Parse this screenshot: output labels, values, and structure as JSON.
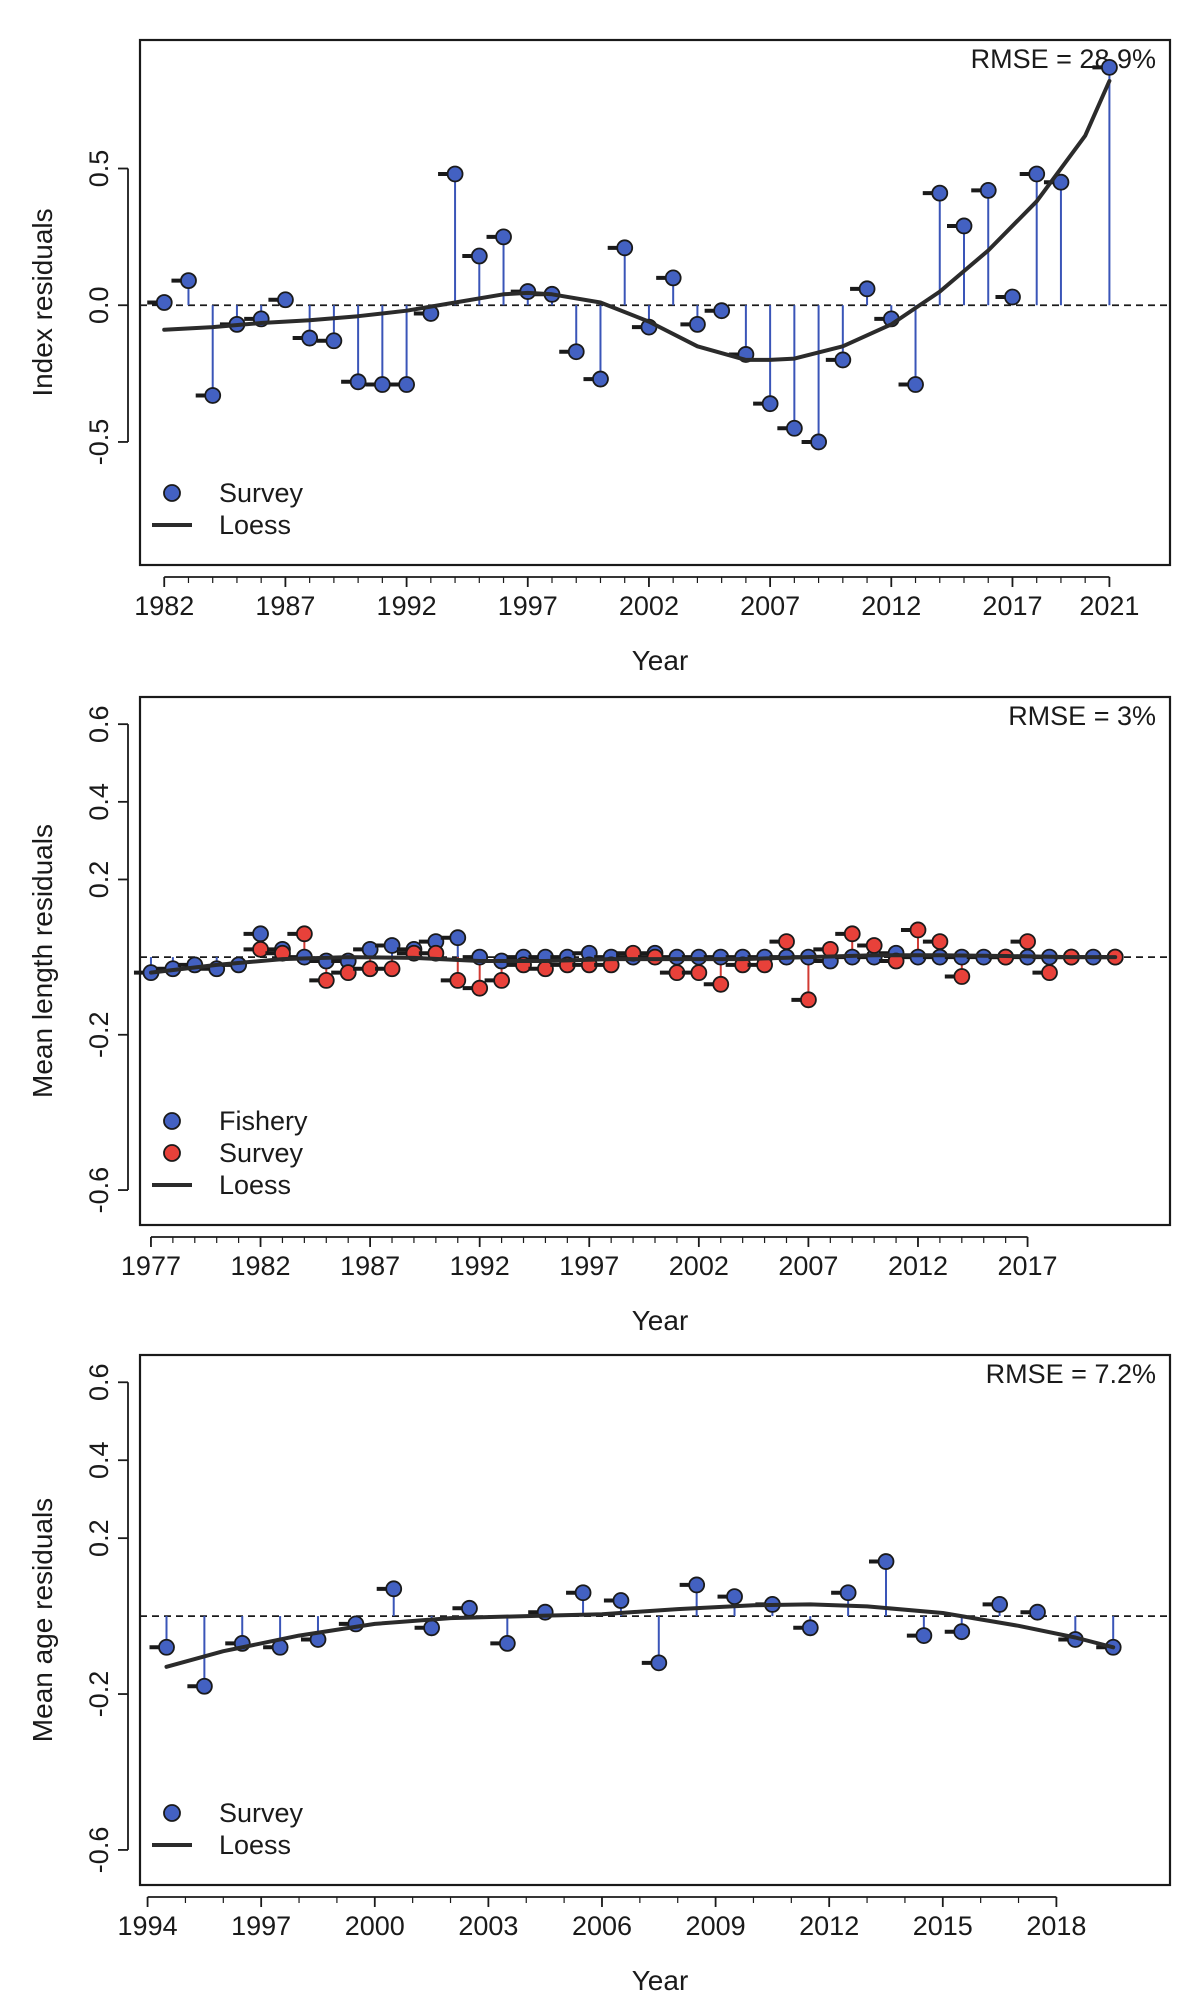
{
  "colors": {
    "fishery": "#4361c2",
    "survey_index": "#4361c2",
    "survey_length": "#e8413a",
    "stem_blue": "#3a55b8",
    "stem_red": "#d13a33",
    "loess": "#2b2b2b",
    "axis": "#1a1a1a"
  },
  "chart_data": [
    {
      "type": "scatter",
      "title": "",
      "annotation": "RMSE = 28.9%",
      "xlabel": "Year",
      "ylabel": "Index residuals",
      "xlim": [
        1981,
        2023.5
      ],
      "ylim": [
        -0.95,
        0.97
      ],
      "xticks": [
        1982,
        1987,
        1992,
        1997,
        2002,
        2007,
        2012,
        2017,
        2021
      ],
      "yticks": [
        -0.5,
        0.0,
        0.5
      ],
      "ytick_labels": [
        "-0.5",
        "0.0",
        "0.5"
      ],
      "legend": {
        "position": "bottom-left",
        "items": [
          {
            "label": "Survey",
            "kind": "point",
            "color_key": "survey_index"
          },
          {
            "label": "Loess",
            "kind": "line"
          }
        ]
      },
      "series": [
        {
          "name": "Survey",
          "color_key": "survey_index",
          "stem_key": "stem_blue",
          "x": [
            1982,
            1983,
            1984,
            1985,
            1986,
            1987,
            1988,
            1989,
            1990,
            1991,
            1992,
            1993,
            1994,
            1995,
            1996,
            1997,
            1998,
            1999,
            2000,
            2001,
            2002,
            2003,
            2004,
            2005,
            2006,
            2007,
            2008,
            2009,
            2010,
            2011,
            2012,
            2013,
            2014,
            2015,
            2016,
            2017,
            2018,
            2019,
            2021
          ],
          "y": [
            0.01,
            0.09,
            -0.33,
            -0.07,
            -0.05,
            0.02,
            -0.12,
            -0.13,
            -0.28,
            -0.29,
            -0.29,
            -0.03,
            0.48,
            0.18,
            0.25,
            0.05,
            0.04,
            -0.17,
            -0.27,
            0.21,
            -0.08,
            0.1,
            -0.07,
            -0.02,
            -0.18,
            -0.36,
            -0.45,
            -0.5,
            -0.2,
            0.06,
            -0.05,
            -0.29,
            0.41,
            0.29,
            0.42,
            0.03,
            0.48,
            0.45,
            0.87
          ]
        }
      ],
      "loess": {
        "x": [
          1982,
          1984,
          1986,
          1988,
          1990,
          1992,
          1994,
          1996,
          1997,
          1998,
          2000,
          2002,
          2004,
          2006,
          2007,
          2008,
          2010,
          2012,
          2014,
          2016,
          2018,
          2020,
          2021
        ],
        "y": [
          -0.09,
          -0.08,
          -0.065,
          -0.055,
          -0.04,
          -0.02,
          0.01,
          0.04,
          0.045,
          0.04,
          0.01,
          -0.06,
          -0.15,
          -0.2,
          -0.2,
          -0.195,
          -0.15,
          -0.07,
          0.05,
          0.2,
          0.38,
          0.62,
          0.82
        ]
      }
    },
    {
      "type": "scatter",
      "title": "",
      "annotation": "RMSE = 3%",
      "xlabel": "Year",
      "ylabel": "Mean length residuals",
      "xlim": [
        1976.5,
        2023.5
      ],
      "ylim": [
        -0.69,
        0.67
      ],
      "xticks": [
        1977,
        1982,
        1987,
        1992,
        1997,
        2002,
        2007,
        2012,
        2017
      ],
      "yticks": [
        -0.6,
        -0.2,
        0.2,
        0.4,
        0.6
      ],
      "ytick_labels": [
        "-0.6",
        "-0.2",
        "0.2",
        "0.4",
        "0.6"
      ],
      "legend": {
        "position": "bottom-left",
        "items": [
          {
            "label": "Fishery",
            "kind": "point",
            "color_key": "fishery"
          },
          {
            "label": "Survey",
            "kind": "point",
            "color_key": "survey_length"
          },
          {
            "label": "Loess",
            "kind": "line"
          }
        ]
      },
      "series": [
        {
          "name": "Fishery",
          "color_key": "fishery",
          "stem_key": "stem_blue",
          "x": [
            1977,
            1978,
            1979,
            1980,
            1981,
            1982,
            1983,
            1984,
            1985,
            1986,
            1987,
            1988,
            1989,
            1990,
            1991,
            1992,
            1993,
            1994,
            1995,
            1996,
            1997,
            1998,
            1999,
            2000,
            2001,
            2002,
            2003,
            2004,
            2005,
            2006,
            2007,
            2008,
            2009,
            2010,
            2011,
            2012,
            2013,
            2014,
            2015,
            2016,
            2017,
            2018,
            2019,
            2020,
            2021
          ],
          "y": [
            -0.04,
            -0.03,
            -0.02,
            -0.03,
            -0.02,
            0.06,
            0.02,
            0.0,
            -0.01,
            -0.01,
            0.02,
            0.03,
            0.02,
            0.04,
            0.05,
            0.0,
            -0.01,
            0.0,
            0.0,
            0.0,
            0.01,
            0.0,
            0.0,
            0.01,
            0.0,
            0.0,
            0.0,
            0.0,
            0.0,
            0.0,
            0.0,
            -0.01,
            0.0,
            0.0,
            0.01,
            0.0,
            0.0,
            0.0,
            0.0,
            0.0,
            0.0,
            0.0,
            0.0,
            0.0,
            0.0
          ]
        },
        {
          "name": "Survey",
          "color_key": "survey_length",
          "stem_key": "stem_red",
          "x": [
            1982,
            1983,
            1984,
            1985,
            1986,
            1987,
            1988,
            1989,
            1990,
            1991,
            1992,
            1993,
            1994,
            1995,
            1996,
            1997,
            1998,
            1999,
            2000,
            2001,
            2002,
            2003,
            2004,
            2005,
            2006,
            2007,
            2008,
            2009,
            2010,
            2011,
            2012,
            2013,
            2014,
            2016,
            2017,
            2018,
            2019,
            2021
          ],
          "y": [
            0.02,
            0.01,
            0.06,
            -0.06,
            -0.04,
            -0.03,
            -0.03,
            0.01,
            0.01,
            -0.06,
            -0.08,
            -0.06,
            -0.02,
            -0.03,
            -0.02,
            -0.02,
            -0.02,
            0.01,
            0.0,
            -0.04,
            -0.04,
            -0.07,
            -0.02,
            -0.02,
            0.04,
            -0.11,
            0.02,
            0.06,
            0.03,
            -0.01,
            0.07,
            0.04,
            -0.05,
            0.0,
            0.04,
            -0.04,
            0.0,
            0.0
          ]
        }
      ],
      "loess": {
        "x": [
          1977,
          1980,
          1983,
          1986,
          1989,
          1992,
          1995,
          1998,
          2001,
          2004,
          2007,
          2010,
          2013,
          2016,
          2019,
          2021
        ],
        "y": [
          -0.04,
          -0.02,
          -0.005,
          0.0,
          -0.002,
          -0.01,
          -0.01,
          -0.005,
          -0.005,
          -0.005,
          0.0,
          0.005,
          0.005,
          0.003,
          0.0,
          0.0
        ]
      }
    },
    {
      "type": "scatter",
      "title": "",
      "annotation": "RMSE = 7.2%",
      "xlabel": "Year",
      "ylabel": "Mean age residuals",
      "xlim": [
        1993.8,
        2021
      ],
      "ylim": [
        -0.69,
        0.67
      ],
      "xticks": [
        1994,
        1997,
        2000,
        2003,
        2006,
        2009,
        2012,
        2015,
        2018
      ],
      "yticks": [
        -0.6,
        -0.2,
        0.2,
        0.4,
        0.6
      ],
      "ytick_labels": [
        "-0.6",
        "-0.2",
        "0.2",
        "0.4",
        "0.6"
      ],
      "legend": {
        "position": "bottom-left",
        "items": [
          {
            "label": "Survey",
            "kind": "point",
            "color_key": "survey_index"
          },
          {
            "label": "Loess",
            "kind": "line"
          }
        ]
      },
      "series": [
        {
          "name": "Survey",
          "color_key": "survey_index",
          "stem_key": "stem_blue",
          "x": [
            1994.5,
            1995.5,
            1996.5,
            1997.5,
            1998.5,
            1999.5,
            2000.5,
            2001.5,
            2002.5,
            2003.5,
            2004.5,
            2005.5,
            2006.5,
            2007.5,
            2008.5,
            2009.5,
            2010.5,
            2011.5,
            2012.5,
            2013.5,
            2014.5,
            2015.5,
            2016.5,
            2017.5,
            2018.5,
            2019.5
          ],
          "y": [
            -0.08,
            -0.18,
            -0.07,
            -0.08,
            -0.06,
            -0.02,
            0.07,
            -0.03,
            0.02,
            -0.07,
            0.01,
            0.06,
            0.04,
            -0.12,
            0.08,
            0.05,
            0.03,
            -0.03,
            0.06,
            0.14,
            -0.05,
            -0.04,
            0.03,
            0.01,
            -0.06,
            -0.08
          ]
        }
      ],
      "loess": {
        "x": [
          1994.5,
          1996,
          1998,
          2000,
          2002,
          2004,
          2006,
          2008,
          2010,
          2011.5,
          2013,
          2015,
          2017,
          2018.5,
          2019.5
        ],
        "y": [
          -0.13,
          -0.09,
          -0.05,
          -0.02,
          -0.005,
          0.0,
          0.005,
          0.018,
          0.028,
          0.03,
          0.025,
          0.008,
          -0.025,
          -0.055,
          -0.08
        ]
      }
    }
  ]
}
